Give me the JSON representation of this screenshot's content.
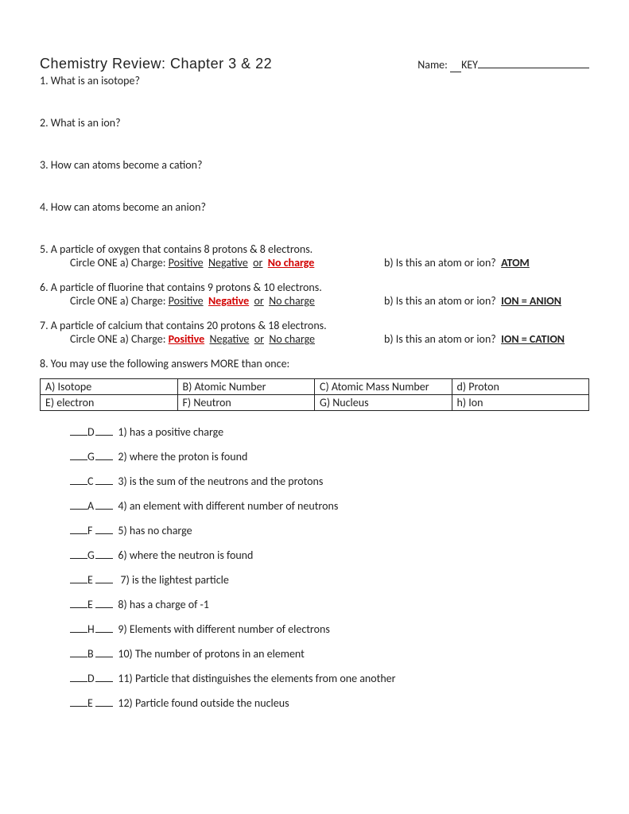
{
  "header": {
    "title": "Chemistry Review: Chapter 3 & 22",
    "name_label": "Name:",
    "name_value": "KEY"
  },
  "questions": {
    "q1": "1. What is an isotope?",
    "q2": "2. What is an ion?",
    "q3": "3. How can atoms become a cation?",
    "q4": "4. How can atoms become an anion?",
    "q5": {
      "text": "5. A particle of oxygen that contains 8 protons & 8 electrons.",
      "circle": "Circle ONE   a)  Charge:",
      "opt_pos": "Positive",
      "opt_neg": "Negative",
      "or1": "or",
      "opt_none": "No charge",
      "b_text": "b) Is this an atom or ion?",
      "b_ans": "ATOM"
    },
    "q6": {
      "text": "6. A particle of fluorine that contains 9 protons & 10 electrons.",
      "circle": "Circle ONE   a)  Charge:",
      "opt_pos": "Positive",
      "opt_neg": "Negative",
      "or1": "or",
      "opt_none": "No charge",
      "b_text": "b) Is this an atom or ion?",
      "b_ans": "ION = ANION"
    },
    "q7": {
      "text": "7. A particle of calcium that contains 20 protons & 18 electrons.",
      "circle": "Circle ONE   a)  Charge:",
      "opt_pos": "Positive",
      "opt_neg": "Negative",
      "or1": "or",
      "opt_none": "No charge",
      "b_text": "b) Is this an atom or ion?",
      "b_ans": "ION = CATION"
    },
    "q8_intro": "8. You may use the following answers MORE than once:"
  },
  "options": {
    "a": "A) Isotope",
    "b": "B) Atomic Number",
    "c": "C) Atomic Mass Number",
    "d": "d) Proton",
    "e": "E) electron",
    "f": "F) Neutron",
    "g": "G) Nucleus",
    "h": "h)  Ion"
  },
  "matches": [
    {
      "ans": "D",
      "text": "1) has a positive charge"
    },
    {
      "ans": "G",
      "text": "2) where the proton is found"
    },
    {
      "ans": "C",
      "text": "3) is the sum of the neutrons and the protons"
    },
    {
      "ans": "A",
      "text": "4) an element with different number of neutrons"
    },
    {
      "ans": "F",
      "text": "5) has no charge"
    },
    {
      "ans": "G",
      "text": "6) where the neutron is found"
    },
    {
      "ans": "E",
      "text": " 7) is the lightest particle"
    },
    {
      "ans": "E",
      "text": "8) has a charge of -1"
    },
    {
      "ans": "H",
      "text": "9) Elements with different number of electrons"
    },
    {
      "ans": "B",
      "text": "10) The number of protons in an element"
    },
    {
      "ans": "D",
      "text": "11) Particle that distinguishes the elements from one another"
    },
    {
      "ans": "E",
      "text": "12) Particle found outside the nucleus"
    }
  ]
}
